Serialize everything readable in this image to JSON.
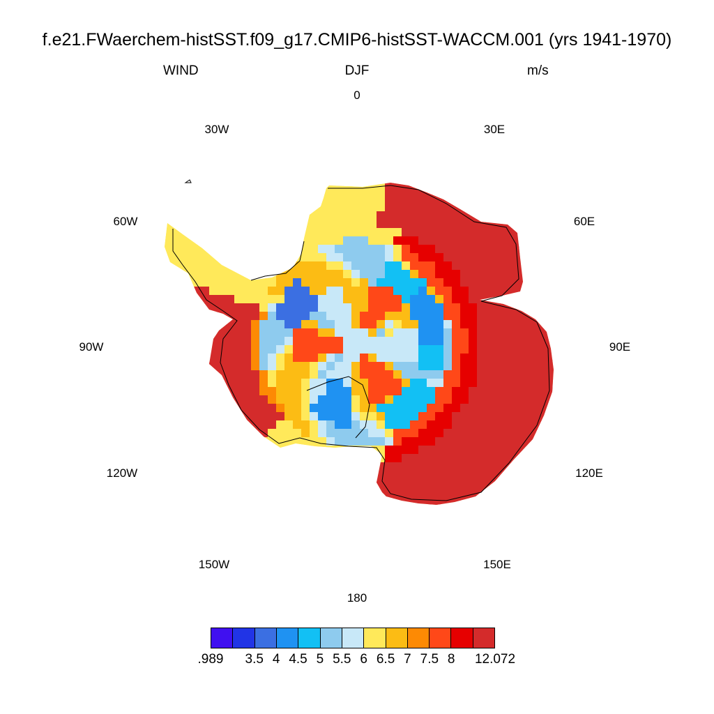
{
  "title": "f.e21.FWaerchem-histSST.f09_g17.CMIP6-histSST-WACCM.001 (yrs 1941-1970)",
  "subtitle": {
    "left": "WIND",
    "center": "DJF",
    "right": "m/s"
  },
  "longitude_labels": [
    "0",
    "30E",
    "60E",
    "90E",
    "120E",
    "150E",
    "180",
    "150W",
    "120W",
    "90W",
    "60W",
    "30W"
  ],
  "colorbar": {
    "colors": [
      "#4010f0",
      "#2134e6",
      "#3b6fe2",
      "#1f92f2",
      "#12c0f4",
      "#8ecbee",
      "#c8e8f8",
      "#ffe95a",
      "#fcbc14",
      "#fd8a04",
      "#ff4818",
      "#e60000",
      "#d42b2b"
    ],
    "labels": [
      ".989",
      "3.5",
      "4",
      "4.5",
      "5",
      "5.5",
      "6",
      "6.5",
      "7",
      "7.5",
      "8",
      "12.072"
    ]
  },
  "map": {
    "projection": "south polar stereographic",
    "region": "Antarctica",
    "variable": "WIND",
    "season": "DJF",
    "units": "m/s",
    "coastline_color": "#000000"
  }
}
